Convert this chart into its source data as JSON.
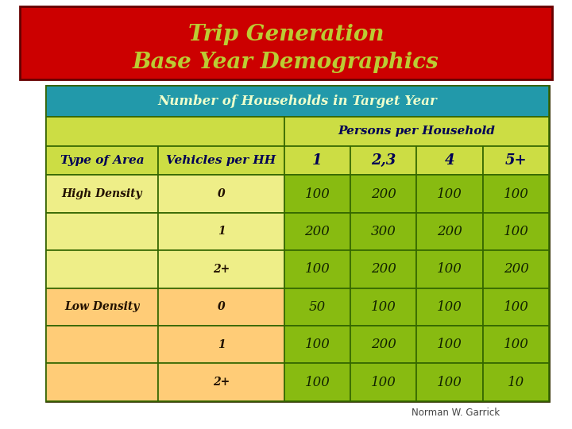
{
  "title_line1": "Trip Generation",
  "title_line2": "Base Year Demographics",
  "title_bg": "#CC0000",
  "title_fg": "#BBCC33",
  "title_border": "#660000",
  "subtitle": "Number of Households in Target Year",
  "subtitle_bg": "#2299AA",
  "subtitle_fg": "#EEFFCC",
  "header2": "Persons per Household",
  "col_headers": [
    "Type of Area",
    "Vehicles per HH",
    "1",
    "2,3",
    "4",
    "5+"
  ],
  "rows": [
    [
      "High Density",
      "0",
      "100",
      "200",
      "100",
      "100"
    ],
    [
      "",
      "1",
      "200",
      "300",
      "200",
      "100"
    ],
    [
      "",
      "2+",
      "100",
      "200",
      "100",
      "200"
    ],
    [
      "Low Density",
      "0",
      "50",
      "100",
      "100",
      "100"
    ],
    [
      "",
      "1",
      "100",
      "200",
      "100",
      "100"
    ],
    [
      "",
      "2+",
      "100",
      "100",
      "100",
      "10"
    ]
  ],
  "col_widths_rel": [
    1.7,
    1.9,
    1.0,
    1.0,
    1.0,
    1.0
  ],
  "high_density_bg": "#EEEE88",
  "low_density_bg": "#FFCC77",
  "data_cell_bg": "#88BB11",
  "header_row_bg": "#CCDD44",
  "border_color": "#336600",
  "text_dark": "#221100",
  "text_header_blue": "#000055",
  "text_green_data": "#112200",
  "attribution": "Norman W. Garrick",
  "figure_bg": "#FFFFFF",
  "table_border": "#333300"
}
